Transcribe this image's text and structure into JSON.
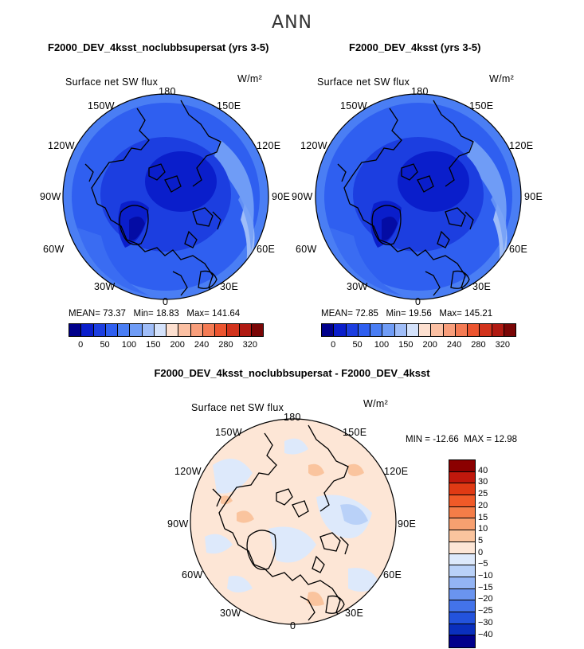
{
  "figure": {
    "title": "ANN",
    "colors": {
      "cbar_abs": [
        "#00008b",
        "#0a1ecb",
        "#1c3ee0",
        "#2f5ff0",
        "#4a7ef4",
        "#6f9cf6",
        "#9fbdf8",
        "#d4e2fb",
        "#fde0d0",
        "#fbc0a3",
        "#f89e7b",
        "#f47b54",
        "#ec5530",
        "#d2331c",
        "#b01a12",
        "#7a0606"
      ],
      "cbar_diff": [
        "#8b0000",
        "#c0180c",
        "#e03a14",
        "#f05a28",
        "#f47d48",
        "#f7a070",
        "#fac49e",
        "#fde6d6",
        "#dde9fb",
        "#b9d1f8",
        "#93b4f4",
        "#6a94ef",
        "#4373e9",
        "#2353dc",
        "#0a2fbd",
        "#00008b"
      ]
    }
  },
  "panels": [
    {
      "title": "F2000_DEV_4ksst_noclubbsupersat (yrs 3-5)",
      "variable": "Surface net SW flux",
      "units": "W/m²",
      "lon_labels": [
        "180",
        "150E",
        "120E",
        "90E",
        "60E",
        "30E",
        "0",
        "30W",
        "60W",
        "90W",
        "120W",
        "150W"
      ],
      "stats": {
        "mean_label": "MEAN=",
        "mean": "73.37",
        "min_label": "Min=",
        "min": "18.83",
        "max_label": "Max=",
        "max": "141.64"
      },
      "colorbar_ticks": [
        "0",
        "50",
        "100",
        "150",
        "200",
        "240",
        "280",
        "320"
      ]
    },
    {
      "title": "F2000_DEV_4ksst (yrs 3-5)",
      "variable": "Surface net SW flux",
      "units": "W/m²",
      "lon_labels": [
        "180",
        "150E",
        "120E",
        "90E",
        "60E",
        "30E",
        "0",
        "30W",
        "60W",
        "90W",
        "120W",
        "150W"
      ],
      "stats": {
        "mean_label": "MEAN=",
        "mean": "72.85",
        "min_label": "Min=",
        "min": "19.56",
        "max_label": "Max=",
        "max": "145.21"
      },
      "colorbar_ticks": [
        "0",
        "50",
        "100",
        "150",
        "200",
        "240",
        "280",
        "320"
      ]
    },
    {
      "title": "F2000_DEV_4ksst_noclubbsupersat - F2000_DEV_4ksst",
      "variable": "Surface net SW flux",
      "units": "W/m²",
      "lon_labels": [
        "180",
        "150E",
        "120E",
        "90E",
        "60E",
        "30E",
        "0",
        "30W",
        "60W",
        "90W",
        "120W",
        "150W"
      ],
      "stats": {
        "min_label": "MIN =",
        "min": "-12.66",
        "max_label": "MAX =",
        "max": "12.98"
      },
      "colorbar_ticks": [
        "40",
        "30",
        "25",
        "20",
        "15",
        "10",
        "5",
        "0",
        "−5",
        "−10",
        "−15",
        "−20",
        "−25",
        "−30",
        "−40"
      ]
    }
  ]
}
